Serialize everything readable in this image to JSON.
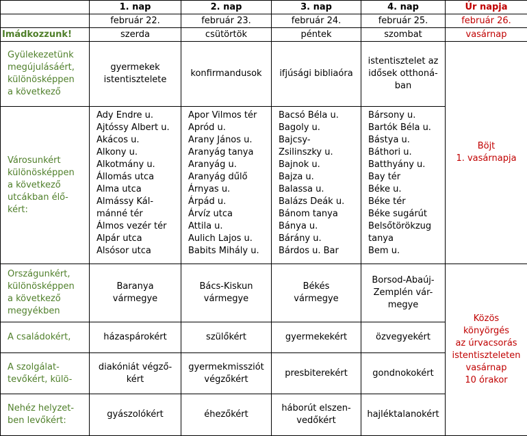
{
  "header": {
    "days": [
      "1. nap",
      "2. nap",
      "3. nap",
      "4. nap",
      "Úr napja"
    ],
    "dates": [
      "február 22.",
      "február 23.",
      "február 24.",
      "február 25.",
      "február 26."
    ],
    "prompt": "Imádkozzunk!",
    "weekdays": [
      "szerda",
      "csütörtök",
      "péntek",
      "szombat",
      "vasárnap"
    ]
  },
  "rows": [
    {
      "label": [
        "Gyülekezetünk",
        "megújulásáért,",
        "különösképpen",
        "a következő"
      ],
      "cells": [
        [
          "gyermekek",
          "istentisztelete"
        ],
        [
          "konfirmandusok"
        ],
        [
          "ifjúsági bibliaóra"
        ],
        [
          "istentisztelet az",
          "idősek otthoná-",
          "ban"
        ]
      ]
    },
    {
      "label": [
        "Városunkért",
        "különösképpen",
        "a következő",
        "utcákban élő-",
        "kért:"
      ],
      "cells": [
        [
          "Ady Endre u.",
          "Ajtóssy Albert u.",
          "Akácos u.",
          "Alkony u.",
          "Alkotmány u.",
          "Állomás utca",
          "Alma utca",
          "Almássy Kál-",
          "mánné tér",
          "Álmos vezér tér",
          "Alpár utca",
          "Alsósor utca"
        ],
        [
          "Apor Vilmos tér",
          "Apród u.",
          "Arany János u.",
          "Aranyág tanya",
          "Aranyág u.",
          "Aranyág dűlő",
          "Árnyas u.",
          "Árpád u.",
          "Árvíz utca",
          "Attila u.",
          "Aulich Lajos u.",
          "Babits Mihály u."
        ],
        [
          "Bacsó Béla u.",
          "Bagoly u.",
          "Bajcsy-",
          "Zsilinszky u.",
          "Bajnok u.",
          "Bajza u.",
          "Balassa u.",
          "Balázs Deák u.",
          "Bánom tanya",
          "Bánya u.",
          "Bárány u.",
          "Bárdos u. Bar"
        ],
        [
          "Bársony u.",
          "Bartók Béla u.",
          "Bástya u.",
          "Báthori u.",
          "Batthyány u.",
          "Bay tér",
          "Béke u.",
          "Béke tér",
          "Béke sugárút",
          "Belsőtörökzug",
          "tanya",
          "Bem u."
        ]
      ]
    },
    {
      "label": [
        "Országunkért,",
        "különösképpen",
        "a következő",
        "megyékben"
      ],
      "cells": [
        [
          "Baranya",
          "vármegye"
        ],
        [
          "Bács-Kiskun",
          "vármegye"
        ],
        [
          "Békés",
          "vármegye"
        ],
        [
          "Borsod-Abaúj-",
          "Zemplén vár-",
          "megye"
        ]
      ]
    },
    {
      "label": [
        "A családokért,"
      ],
      "cells": [
        [
          "házaspárokért"
        ],
        [
          "szülőkért"
        ],
        [
          "gyermekekért"
        ],
        [
          "özvegyekért"
        ]
      ]
    },
    {
      "label": [
        "A szolgálat-",
        "tevőkért, külö-"
      ],
      "cells": [
        [
          "diakóniát végző-",
          "kért"
        ],
        [
          "gyermekmissziót",
          "végzőkért"
        ],
        [
          "presbiterekért"
        ],
        [
          "gondnokokért"
        ]
      ]
    },
    {
      "label": [
        "Nehéz helyzet-",
        "ben levőkért:"
      ],
      "cells": [
        [
          "gyászolókért"
        ],
        [
          "éhezőkért"
        ],
        [
          "háborút elszen-",
          "vedőkért"
        ],
        [
          "hajléktalanokért"
        ]
      ]
    }
  ],
  "sunday": [
    [
      "Böjt",
      "1. vasárnapja"
    ],
    [
      "Közös",
      "könyörgés",
      "az úrvacsorás",
      "istentiszteleten",
      "vasárnap",
      "10 órakor"
    ]
  ]
}
